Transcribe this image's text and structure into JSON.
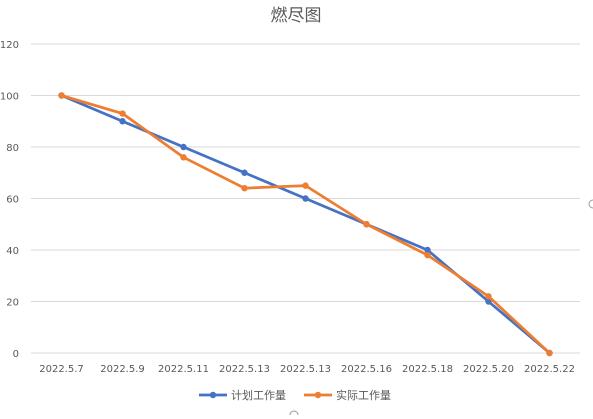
{
  "chart_data": {
    "type": "line",
    "title": "燃尽图",
    "xlabel": "",
    "ylabel": "",
    "categories": [
      "2022.5.7",
      "2022.5.9",
      "2022.5.11",
      "2022.5.13",
      "2022.5.13",
      "2022.5.16",
      "2022.5.18",
      "2022.5.20",
      "2022.5.22"
    ],
    "ylim": [
      0,
      120
    ],
    "yticks": [
      0,
      20,
      40,
      60,
      80,
      100,
      120
    ],
    "grid": true,
    "legend_position": "bottom",
    "series": [
      {
        "name": "计划工作量",
        "color": "#4472C4",
        "values": [
          100,
          90,
          80,
          70,
          60,
          50,
          40,
          20,
          0
        ]
      },
      {
        "name": "实际工作量",
        "color": "#ED7D31",
        "values": [
          100,
          93,
          76,
          64,
          65,
          50,
          38,
          22,
          0
        ]
      }
    ]
  }
}
